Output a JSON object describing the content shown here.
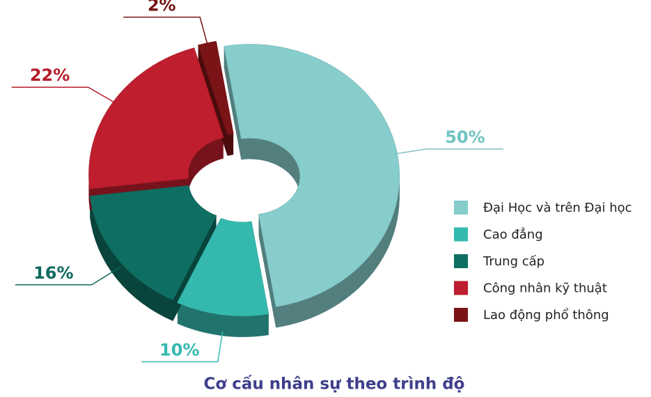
{
  "chart_data": {
    "type": "donut",
    "title": "Cơ cấu nhân sự theo trình độ",
    "categories": [
      "Đại Học và trên Đại học",
      "Cao đẳng",
      "Trung cấp",
      "Công nhân kỹ thuật",
      "Lao động phổ thông"
    ],
    "values": [
      50,
      10,
      16,
      22,
      2
    ],
    "value_labels": [
      "50%",
      "10%",
      "16%",
      "22%",
      "2%"
    ],
    "colors": [
      "#86cdcc",
      "#35b9ae",
      "#0f6e62",
      "#be1e2d",
      "#7a1416"
    ],
    "legend": "right"
  }
}
